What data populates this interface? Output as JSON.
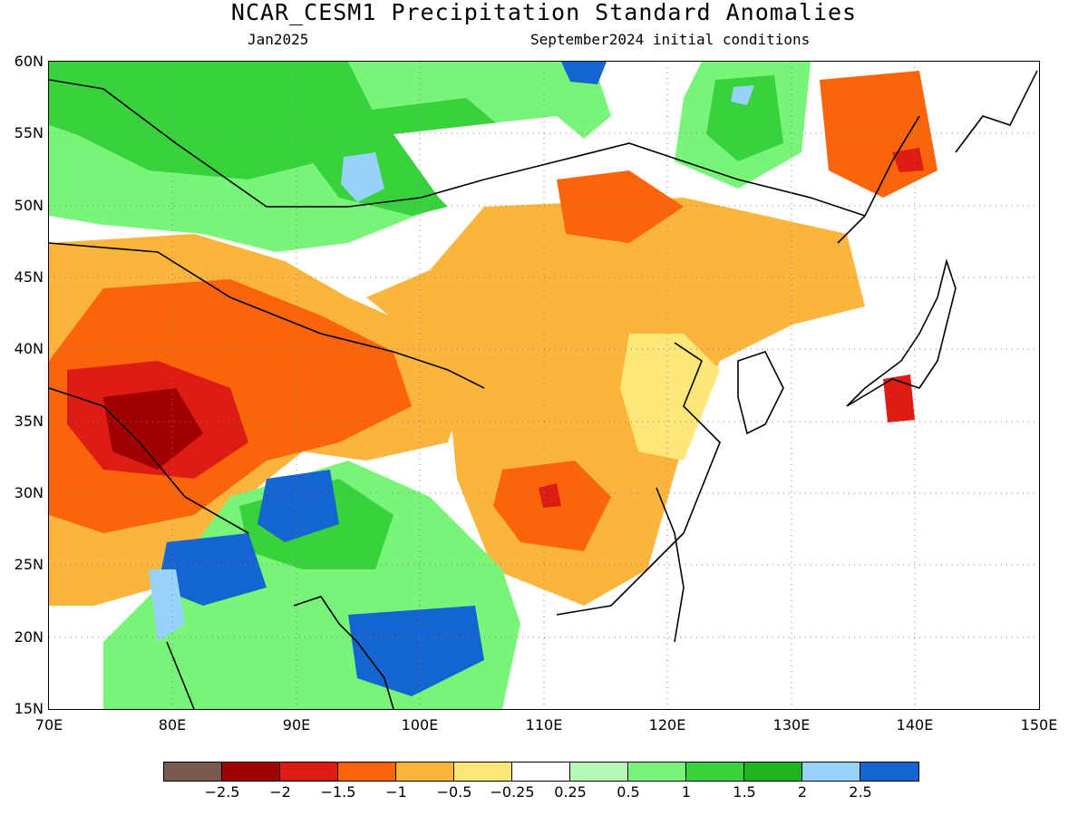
{
  "title": "NCAR_CESM1 Precipitation Standard Anomalies",
  "valid_month": "Jan2025",
  "initial_conditions": "September2024 initial conditions",
  "map": {
    "lon_range": [
      70,
      150
    ],
    "lat_range": [
      15,
      60
    ],
    "lat_labels": [
      "60N",
      "55N",
      "50N",
      "45N",
      "40N",
      "35N",
      "30N",
      "25N",
      "20N",
      "15N"
    ],
    "lon_labels": [
      "70E",
      "80E",
      "90E",
      "100E",
      "110E",
      "120E",
      "130E",
      "140E",
      "150E"
    ],
    "gridlines": "dotted"
  },
  "colorbar": {
    "colors": [
      "#7a5a50",
      "#a00000",
      "#dd1c14",
      "#fa640a",
      "#fbb43c",
      "#fee678",
      "#ffffff",
      "#b4fab4",
      "#78f578",
      "#37d23c",
      "#1eb41e",
      "#96d2fa",
      "#1464d2"
    ],
    "labels": [
      "−2.5",
      "−2",
      "−1.5",
      "−1",
      "−0.5",
      "−0.25",
      "0.25",
      "0.5",
      "1",
      "1.5",
      "2",
      "2.5"
    ]
  },
  "icons": {
    "coastlines": "coastline-outline",
    "borders": "country-border-outline"
  }
}
